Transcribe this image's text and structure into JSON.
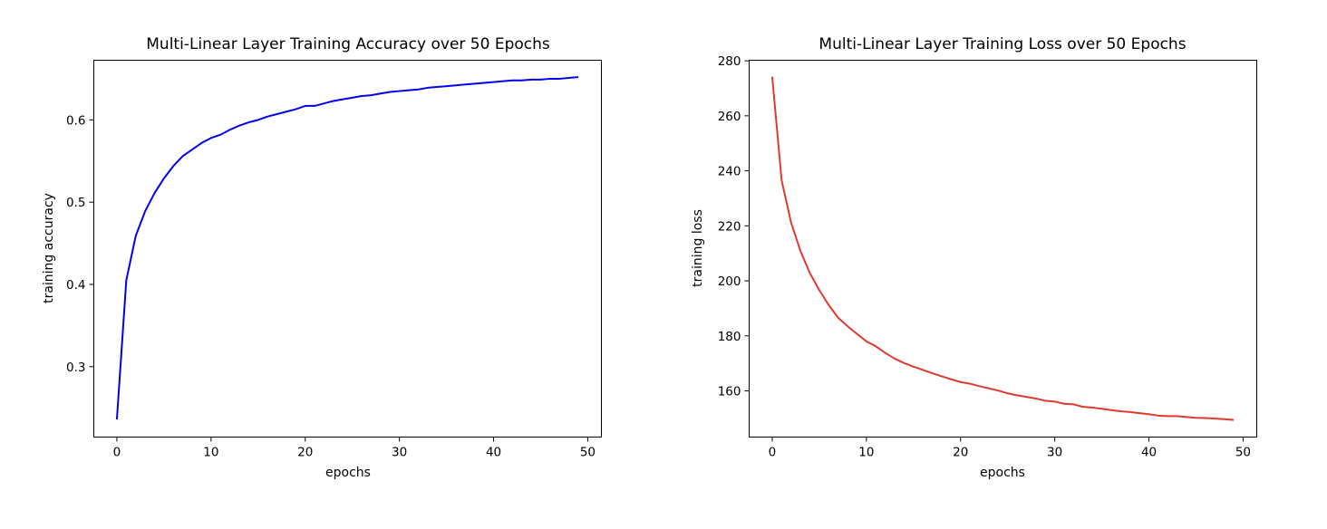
{
  "chart_data": [
    {
      "type": "line",
      "title": "Multi-Linear Layer Training Accuracy over 50 Epochs",
      "xlabel": "epochs",
      "ylabel": "training accuracy",
      "xlim": [
        -2.45,
        51.45
      ],
      "ylim": [
        0.2145,
        0.6725
      ],
      "xticks": [
        0,
        10,
        20,
        30,
        40,
        50
      ],
      "yticks": [
        0.3,
        0.4,
        0.5,
        0.6
      ],
      "grid": false,
      "series": [
        {
          "color": "#0000ee",
          "x": [
            0,
            1,
            2,
            3,
            4,
            5,
            6,
            7,
            8,
            9,
            10,
            11,
            12,
            13,
            14,
            15,
            16,
            17,
            18,
            19,
            20,
            21,
            22,
            23,
            24,
            25,
            26,
            27,
            28,
            29,
            30,
            31,
            32,
            33,
            34,
            35,
            36,
            37,
            38,
            39,
            40,
            41,
            42,
            43,
            44,
            45,
            46,
            47,
            48,
            49
          ],
          "values": [
            0.236,
            0.405,
            0.459,
            0.489,
            0.511,
            0.529,
            0.544,
            0.556,
            0.564,
            0.572,
            0.578,
            0.582,
            0.588,
            0.593,
            0.597,
            0.6,
            0.604,
            0.607,
            0.61,
            0.613,
            0.617,
            0.617,
            0.62,
            0.623,
            0.625,
            0.627,
            0.629,
            0.63,
            0.632,
            0.634,
            0.635,
            0.636,
            0.637,
            0.639,
            0.64,
            0.641,
            0.642,
            0.643,
            0.644,
            0.645,
            0.646,
            0.647,
            0.648,
            0.648,
            0.649,
            0.649,
            0.65,
            0.65,
            0.651,
            0.652
          ]
        }
      ]
    },
    {
      "type": "line",
      "title": "Multi-Linear Layer Training Loss over 50 Epochs",
      "xlabel": "epochs",
      "ylabel": "training loss",
      "xlim": [
        -2.45,
        51.45
      ],
      "ylim": [
        143.2,
        280.2
      ],
      "xticks": [
        0,
        10,
        20,
        30,
        40,
        50
      ],
      "yticks": [
        160,
        180,
        200,
        220,
        240,
        260,
        280
      ],
      "grid": false,
      "series": [
        {
          "color": "#e03a2e",
          "x": [
            0,
            1,
            2,
            3,
            4,
            5,
            6,
            7,
            8,
            9,
            10,
            11,
            12,
            13,
            14,
            15,
            16,
            17,
            18,
            19,
            20,
            21,
            22,
            23,
            24,
            25,
            26,
            27,
            28,
            29,
            30,
            31,
            32,
            33,
            34,
            35,
            36,
            37,
            38,
            39,
            40,
            41,
            42,
            43,
            44,
            45,
            46,
            47,
            48,
            49
          ],
          "values": [
            274.2,
            236.5,
            221.2,
            210.8,
            202.8,
            196.6,
            191.2,
            186.6,
            183.5,
            180.7,
            178.0,
            176.2,
            173.8,
            171.7,
            170.1,
            168.8,
            167.6,
            166.4,
            165.3,
            164.2,
            163.2,
            162.6,
            161.7,
            160.9,
            160.1,
            159.1,
            158.4,
            157.8,
            157.2,
            156.4,
            156.1,
            155.3,
            155.1,
            154.2,
            153.9,
            153.5,
            153.0,
            152.6,
            152.3,
            151.9,
            151.5,
            151.0,
            150.8,
            150.8,
            150.5,
            150.2,
            150.1,
            149.9,
            149.7,
            149.4
          ]
        }
      ]
    }
  ]
}
